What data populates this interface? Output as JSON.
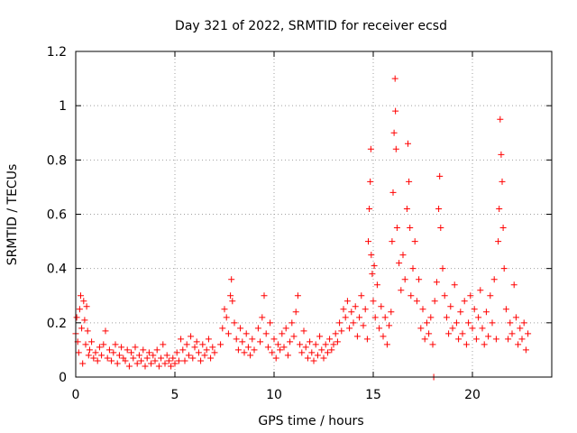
{
  "chart_data": {
    "type": "scatter",
    "title": "Day 321 of 2022, SRMTID for receiver ecsd",
    "xlabel": "GPS time / hours",
    "ylabel": "SRMTID / TECUs",
    "xlim": [
      0,
      24
    ],
    "ylim": [
      0,
      1.2
    ],
    "xticks": [
      0,
      5,
      10,
      15,
      20
    ],
    "xtick_labels": [
      "0",
      "5",
      "10",
      "15",
      "20"
    ],
    "yticks": [
      0,
      0.2,
      0.4,
      0.6,
      0.8,
      1.0,
      1.2
    ],
    "ytick_labels": [
      "0",
      "0.2",
      "0.4",
      "0.6",
      "0.8",
      "1",
      "1.2"
    ],
    "grid": true,
    "marker": "+",
    "series": [
      {
        "name": "SRMTID",
        "color": "#ff0000",
        "points": [
          [
            0.0,
            0.16
          ],
          [
            0.05,
            0.22
          ],
          [
            0.1,
            0.13
          ],
          [
            0.15,
            0.09
          ],
          [
            0.2,
            0.25
          ],
          [
            0.25,
            0.3
          ],
          [
            0.3,
            0.18
          ],
          [
            0.35,
            0.05
          ],
          [
            0.4,
            0.28
          ],
          [
            0.45,
            0.21
          ],
          [
            0.5,
            0.12
          ],
          [
            0.55,
            0.26
          ],
          [
            0.6,
            0.17
          ],
          [
            0.65,
            0.08
          ],
          [
            0.7,
            0.1
          ],
          [
            0.8,
            0.13
          ],
          [
            0.9,
            0.07
          ],
          [
            1.0,
            0.09
          ],
          [
            1.1,
            0.06
          ],
          [
            1.2,
            0.11
          ],
          [
            1.3,
            0.08
          ],
          [
            1.4,
            0.12
          ],
          [
            1.5,
            0.17
          ],
          [
            1.6,
            0.07
          ],
          [
            1.7,
            0.1
          ],
          [
            1.8,
            0.06
          ],
          [
            1.9,
            0.09
          ],
          [
            2.0,
            0.12
          ],
          [
            2.1,
            0.05
          ],
          [
            2.2,
            0.08
          ],
          [
            2.3,
            0.11
          ],
          [
            2.4,
            0.07
          ],
          [
            2.5,
            0.06
          ],
          [
            2.6,
            0.1
          ],
          [
            2.7,
            0.04
          ],
          [
            2.8,
            0.09
          ],
          [
            2.9,
            0.07
          ],
          [
            3.0,
            0.11
          ],
          [
            3.1,
            0.05
          ],
          [
            3.2,
            0.08
          ],
          [
            3.3,
            0.06
          ],
          [
            3.4,
            0.1
          ],
          [
            3.5,
            0.04
          ],
          [
            3.6,
            0.07
          ],
          [
            3.7,
            0.09
          ],
          [
            3.8,
            0.05
          ],
          [
            3.9,
            0.08
          ],
          [
            4.0,
            0.06
          ],
          [
            4.1,
            0.1
          ],
          [
            4.2,
            0.04
          ],
          [
            4.3,
            0.07
          ],
          [
            4.4,
            0.12
          ],
          [
            4.5,
            0.05
          ],
          [
            4.6,
            0.08
          ],
          [
            4.7,
            0.06
          ],
          [
            4.8,
            0.04
          ],
          [
            4.9,
            0.07
          ],
          [
            5.0,
            0.05
          ],
          [
            5.1,
            0.09
          ],
          [
            5.2,
            0.06
          ],
          [
            5.3,
            0.14
          ],
          [
            5.4,
            0.1
          ],
          [
            5.5,
            0.06
          ],
          [
            5.6,
            0.12
          ],
          [
            5.7,
            0.08
          ],
          [
            5.8,
            0.15
          ],
          [
            5.9,
            0.07
          ],
          [
            6.0,
            0.11
          ],
          [
            6.1,
            0.13
          ],
          [
            6.2,
            0.09
          ],
          [
            6.3,
            0.06
          ],
          [
            6.4,
            0.12
          ],
          [
            6.5,
            0.08
          ],
          [
            6.6,
            0.1
          ],
          [
            6.7,
            0.14
          ],
          [
            6.8,
            0.07
          ],
          [
            6.9,
            0.11
          ],
          [
            7.0,
            0.09
          ],
          [
            7.3,
            0.12
          ],
          [
            7.4,
            0.18
          ],
          [
            7.5,
            0.25
          ],
          [
            7.6,
            0.22
          ],
          [
            7.7,
            0.16
          ],
          [
            7.8,
            0.3
          ],
          [
            7.85,
            0.36
          ],
          [
            7.9,
            0.28
          ],
          [
            8.0,
            0.2
          ],
          [
            8.1,
            0.14
          ],
          [
            8.2,
            0.1
          ],
          [
            8.3,
            0.18
          ],
          [
            8.4,
            0.13
          ],
          [
            8.5,
            0.09
          ],
          [
            8.6,
            0.16
          ],
          [
            8.7,
            0.11
          ],
          [
            8.8,
            0.08
          ],
          [
            8.9,
            0.14
          ],
          [
            9.0,
            0.1
          ],
          [
            9.2,
            0.18
          ],
          [
            9.3,
            0.13
          ],
          [
            9.4,
            0.22
          ],
          [
            9.5,
            0.3
          ],
          [
            9.6,
            0.16
          ],
          [
            9.7,
            0.11
          ],
          [
            9.8,
            0.2
          ],
          [
            9.9,
            0.09
          ],
          [
            10.0,
            0.14
          ],
          [
            10.1,
            0.07
          ],
          [
            10.2,
            0.12
          ],
          [
            10.3,
            0.1
          ],
          [
            10.4,
            0.16
          ],
          [
            10.5,
            0.11
          ],
          [
            10.6,
            0.18
          ],
          [
            10.7,
            0.08
          ],
          [
            10.8,
            0.13
          ],
          [
            10.9,
            0.2
          ],
          [
            11.0,
            0.15
          ],
          [
            11.1,
            0.24
          ],
          [
            11.2,
            0.3
          ],
          [
            11.3,
            0.12
          ],
          [
            11.4,
            0.09
          ],
          [
            11.5,
            0.17
          ],
          [
            11.6,
            0.11
          ],
          [
            11.7,
            0.07
          ],
          [
            11.8,
            0.13
          ],
          [
            11.9,
            0.09
          ],
          [
            12.0,
            0.06
          ],
          [
            12.1,
            0.12
          ],
          [
            12.2,
            0.08
          ],
          [
            12.3,
            0.15
          ],
          [
            12.4,
            0.1
          ],
          [
            12.5,
            0.07
          ],
          [
            12.6,
            0.12
          ],
          [
            12.7,
            0.09
          ],
          [
            12.8,
            0.14
          ],
          [
            12.9,
            0.1
          ],
          [
            13.0,
            0.12
          ],
          [
            13.1,
            0.16
          ],
          [
            13.2,
            0.13
          ],
          [
            13.3,
            0.2
          ],
          [
            13.4,
            0.17
          ],
          [
            13.5,
            0.25
          ],
          [
            13.6,
            0.22
          ],
          [
            13.7,
            0.28
          ],
          [
            13.8,
            0.18
          ],
          [
            13.9,
            0.24
          ],
          [
            14.0,
            0.2
          ],
          [
            14.1,
            0.26
          ],
          [
            14.2,
            0.15
          ],
          [
            14.3,
            0.22
          ],
          [
            14.4,
            0.3
          ],
          [
            14.5,
            0.19
          ],
          [
            14.6,
            0.25
          ],
          [
            14.7,
            0.14
          ],
          [
            14.75,
            0.5
          ],
          [
            14.8,
            0.62
          ],
          [
            14.85,
            0.72
          ],
          [
            14.88,
            0.84
          ],
          [
            14.9,
            0.45
          ],
          [
            14.95,
            0.38
          ],
          [
            15.0,
            0.28
          ],
          [
            15.05,
            0.41
          ],
          [
            15.1,
            0.22
          ],
          [
            15.2,
            0.34
          ],
          [
            15.3,
            0.18
          ],
          [
            15.4,
            0.26
          ],
          [
            15.5,
            0.15
          ],
          [
            15.6,
            0.22
          ],
          [
            15.7,
            0.12
          ],
          [
            15.8,
            0.19
          ],
          [
            15.9,
            0.24
          ],
          [
            15.95,
            0.5
          ],
          [
            16.0,
            0.68
          ],
          [
            16.05,
            0.9
          ],
          [
            16.1,
            1.1
          ],
          [
            16.12,
            0.98
          ],
          [
            16.15,
            0.84
          ],
          [
            16.2,
            0.55
          ],
          [
            16.3,
            0.42
          ],
          [
            16.4,
            0.32
          ],
          [
            16.5,
            0.45
          ],
          [
            16.6,
            0.36
          ],
          [
            16.7,
            0.62
          ],
          [
            16.75,
            0.86
          ],
          [
            16.8,
            0.72
          ],
          [
            16.85,
            0.55
          ],
          [
            16.9,
            0.3
          ],
          [
            17.0,
            0.4
          ],
          [
            17.1,
            0.5
          ],
          [
            17.2,
            0.28
          ],
          [
            17.3,
            0.36
          ],
          [
            17.4,
            0.18
          ],
          [
            17.5,
            0.25
          ],
          [
            17.6,
            0.14
          ],
          [
            17.7,
            0.2
          ],
          [
            17.8,
            0.16
          ],
          [
            17.9,
            0.22
          ],
          [
            18.0,
            0.12
          ],
          [
            18.05,
            0.0
          ],
          [
            18.1,
            0.28
          ],
          [
            18.2,
            0.35
          ],
          [
            18.3,
            0.62
          ],
          [
            18.35,
            0.74
          ],
          [
            18.4,
            0.55
          ],
          [
            18.5,
            0.4
          ],
          [
            18.6,
            0.3
          ],
          [
            18.7,
            0.22
          ],
          [
            18.8,
            0.16
          ],
          [
            18.9,
            0.26
          ],
          [
            19.0,
            0.18
          ],
          [
            19.1,
            0.34
          ],
          [
            19.2,
            0.2
          ],
          [
            19.3,
            0.14
          ],
          [
            19.4,
            0.24
          ],
          [
            19.5,
            0.16
          ],
          [
            19.6,
            0.28
          ],
          [
            19.7,
            0.12
          ],
          [
            19.8,
            0.2
          ],
          [
            19.9,
            0.3
          ],
          [
            20.0,
            0.18
          ],
          [
            20.1,
            0.25
          ],
          [
            20.2,
            0.14
          ],
          [
            20.3,
            0.22
          ],
          [
            20.4,
            0.32
          ],
          [
            20.5,
            0.18
          ],
          [
            20.6,
            0.12
          ],
          [
            20.7,
            0.24
          ],
          [
            20.8,
            0.15
          ],
          [
            20.9,
            0.3
          ],
          [
            21.0,
            0.2
          ],
          [
            21.1,
            0.36
          ],
          [
            21.2,
            0.14
          ],
          [
            21.3,
            0.5
          ],
          [
            21.35,
            0.62
          ],
          [
            21.4,
            0.95
          ],
          [
            21.45,
            0.82
          ],
          [
            21.5,
            0.72
          ],
          [
            21.55,
            0.55
          ],
          [
            21.6,
            0.4
          ],
          [
            21.7,
            0.25
          ],
          [
            21.8,
            0.14
          ],
          [
            21.9,
            0.2
          ],
          [
            22.0,
            0.16
          ],
          [
            22.1,
            0.34
          ],
          [
            22.2,
            0.22
          ],
          [
            22.3,
            0.12
          ],
          [
            22.4,
            0.18
          ],
          [
            22.5,
            0.14
          ],
          [
            22.6,
            0.2
          ],
          [
            22.7,
            0.1
          ],
          [
            22.8,
            0.16
          ]
        ]
      }
    ]
  }
}
